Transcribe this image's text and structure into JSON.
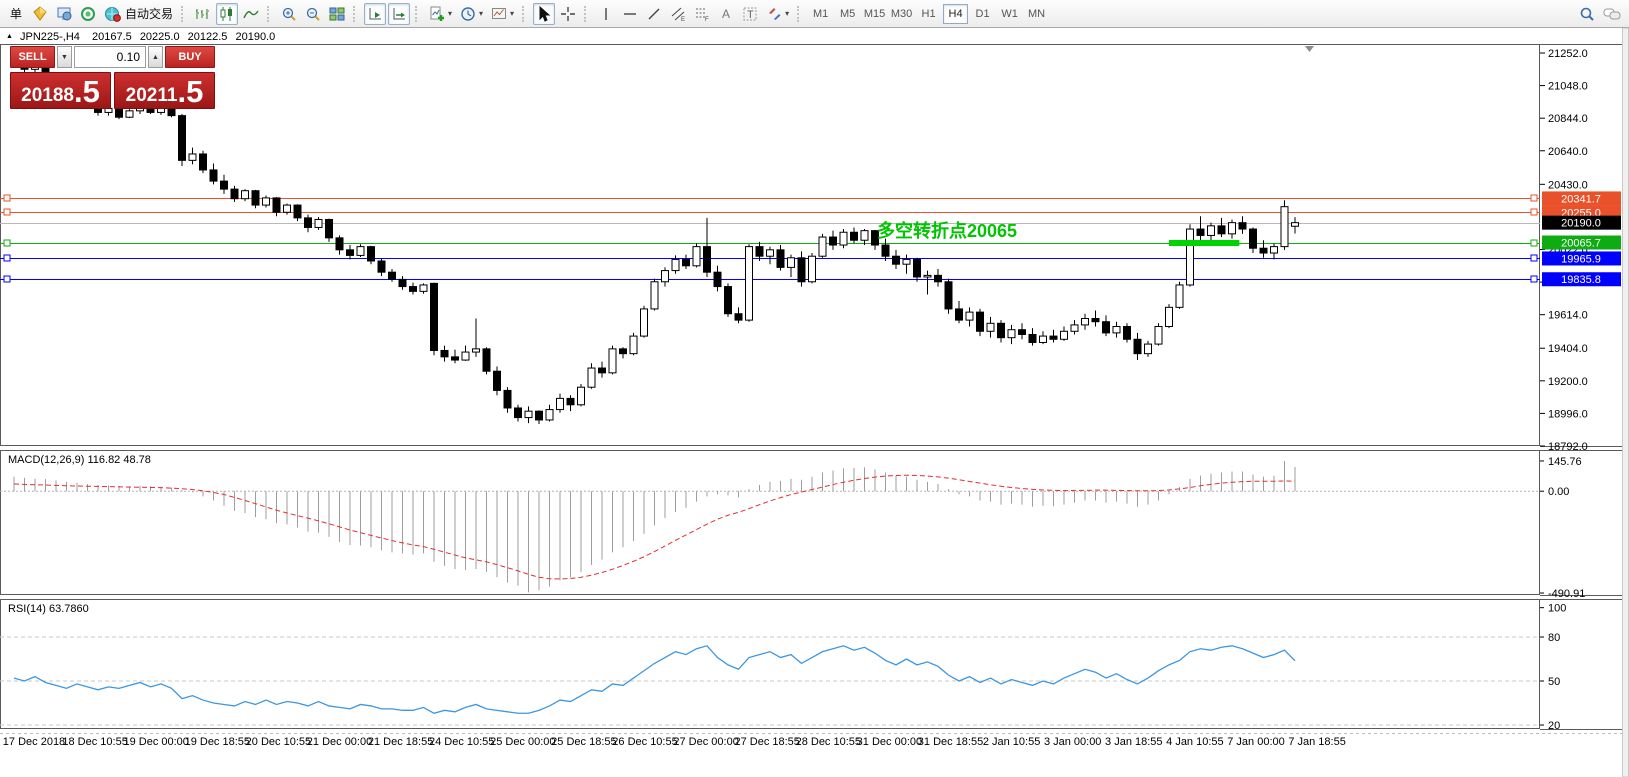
{
  "toolbar": {
    "new_order_label": "单",
    "autotrading_label": "自动交易",
    "timeframes": {
      "items": [
        "M1",
        "M5",
        "M15",
        "M30",
        "H1",
        "H4",
        "D1",
        "W1",
        "MN"
      ],
      "active": "H4"
    }
  },
  "title_bar": {
    "symbol_period": "JPN225-,H4",
    "open": "20167.5",
    "high": "20225.0",
    "low": "20122.5",
    "close": "20190.0"
  },
  "trade_panel": {
    "sell_label": "SELL",
    "buy_label": "BUY",
    "volume": "0.10",
    "sell_price_main": "20188",
    "sell_price_frac": ".5",
    "buy_price_main": "20211",
    "buy_price_frac": ".5"
  },
  "annotation": {
    "text": "多空转折点20065",
    "color": "#00c400"
  },
  "colors": {
    "bull": "#ffffff",
    "bear": "#000000",
    "wick": "#000000",
    "orange_level": "#e8512a",
    "green_level": "#0fab12",
    "blue_level": "#0000ff",
    "current_price_line": "#b8b8b8",
    "current_price_badge": "#000000",
    "macd_histogram": "#9e9e9e",
    "macd_signal": "#e03030",
    "rsi_line": "#3c96e0",
    "highlight_segment": "#00d300"
  },
  "price_axis": {
    "ticks": [
      "21252.0",
      "21048.0",
      "20844.0",
      "20640.0",
      "20430.0",
      "20022.0",
      "19818.0",
      "19614.0",
      "19404.0",
      "19200.0",
      "18996.0",
      "18792.0"
    ]
  },
  "levels": [
    {
      "label": "20341.7",
      "value": 20341.7,
      "color": "#e8512a",
      "handles": true
    },
    {
      "label": "20255.0",
      "value": 20255.0,
      "color": "#e8512a",
      "handles": true
    },
    {
      "label": "20190.0",
      "value": 20190.0,
      "color": "#b8b8b8",
      "badge_color": "#000000",
      "current": true
    },
    {
      "label": "20065.7",
      "value": 20065.7,
      "color": "#0fab12",
      "handles": true,
      "highlight_segment": {
        "from_bar": 110,
        "to_bar": 116.7
      }
    },
    {
      "label": "19965.9",
      "value": 19965.9,
      "color": "#0000ff",
      "handles": true
    },
    {
      "label": "19835.8",
      "value": 19835.8,
      "color": "#0000ff",
      "handles": true
    }
  ],
  "macd_pane": {
    "label": "MACD(12,26,9) 116.82 48.78",
    "axis_ticks": [
      {
        "label": "145.76",
        "value": 145.76
      },
      {
        "label": "0.00",
        "value": 0
      },
      {
        "label": "-490.91",
        "value": -490.91
      }
    ]
  },
  "rsi_pane": {
    "label": "RSI(14) 63.7860",
    "axis_ticks": [
      {
        "label": "100",
        "value": 100
      },
      {
        "label": "80",
        "value": 80
      },
      {
        "label": "50",
        "value": 50
      },
      {
        "label": "20",
        "value": 20
      }
    ],
    "level_lines": [
      80,
      50,
      20
    ]
  },
  "time_axis": {
    "labels": [
      "17 Dec 2018",
      "18 Dec 10:55",
      "19 Dec 00:00",
      "19 Dec 18:55",
      "20 Dec 10:55",
      "21 Dec 00:00",
      "21 Dec 18:55",
      "24 Dec 10:55",
      "25 Dec 00:00",
      "25 Dec 18:55",
      "26 Dec 10:55",
      "27 Dec 00:00",
      "27 Dec 18:55",
      "28 Dec 10:55",
      "31 Dec 00:00",
      "31 Dec 18:55",
      "2 Jan 10:55",
      "3 Jan 00:00",
      "3 Jan 18:55",
      "4 Jan 10:55",
      "7 Jan 00:00",
      "7 Jan 18:55"
    ]
  },
  "chart_data": {
    "type": "candlestick",
    "symbol": "JPN225-",
    "period": "H4",
    "ohlc_current": {
      "open": 20167.5,
      "high": 20225.0,
      "low": 20122.5,
      "close": 20190.0
    },
    "candles": [
      [
        21190,
        21245,
        21160,
        21220
      ],
      [
        21220,
        21235,
        21120,
        21150
      ],
      [
        21150,
        21200,
        21130,
        21180
      ],
      [
        21180,
        21195,
        21080,
        21100
      ],
      [
        21100,
        21130,
        21020,
        21040
      ],
      [
        21040,
        21070,
        20950,
        20970
      ],
      [
        20970,
        21020,
        20940,
        21010
      ],
      [
        21010,
        21025,
        20910,
        20930
      ],
      [
        20930,
        20960,
        20860,
        20880
      ],
      [
        20880,
        20930,
        20860,
        20905
      ],
      [
        20905,
        20915,
        20838,
        20850
      ],
      [
        20850,
        20900,
        20845,
        20890
      ],
      [
        20890,
        20940,
        20870,
        20930
      ],
      [
        20930,
        20945,
        20870,
        20880
      ],
      [
        20880,
        20930,
        20865,
        20920
      ],
      [
        20920,
        20935,
        20850,
        20860
      ],
      [
        20860,
        20870,
        20545,
        20580
      ],
      [
        20580,
        20660,
        20555,
        20620
      ],
      [
        20620,
        20640,
        20500,
        20520
      ],
      [
        20520,
        20560,
        20430,
        20450
      ],
      [
        20450,
        20490,
        20370,
        20400
      ],
      [
        20400,
        20420,
        20320,
        20340
      ],
      [
        20340,
        20400,
        20325,
        20390
      ],
      [
        20390,
        20395,
        20280,
        20300
      ],
      [
        20300,
        20360,
        20285,
        20345
      ],
      [
        20345,
        20350,
        20230,
        20255
      ],
      [
        20255,
        20310,
        20240,
        20300
      ],
      [
        20300,
        20305,
        20200,
        20220
      ],
      [
        20220,
        20240,
        20130,
        20160
      ],
      [
        20160,
        20225,
        20145,
        20210
      ],
      [
        20210,
        20215,
        20070,
        20095
      ],
      [
        20095,
        20110,
        19990,
        20020
      ],
      [
        20020,
        20050,
        19960,
        19985
      ],
      [
        19985,
        20055,
        19975,
        20040
      ],
      [
        20040,
        20045,
        19930,
        19950
      ],
      [
        19950,
        19965,
        19855,
        19880
      ],
      [
        19880,
        19900,
        19820,
        19835
      ],
      [
        19835,
        19855,
        19770,
        19790
      ],
      [
        19790,
        19815,
        19740,
        19760
      ],
      [
        19760,
        19810,
        19745,
        19800
      ],
      [
        19810,
        19815,
        19360,
        19390
      ],
      [
        19390,
        19420,
        19320,
        19350
      ],
      [
        19350,
        19395,
        19310,
        19330
      ],
      [
        19330,
        19420,
        19325,
        19380
      ],
      [
        19380,
        19590,
        19350,
        19400
      ],
      [
        19400,
        19410,
        19240,
        19260
      ],
      [
        19260,
        19290,
        19110,
        19140
      ],
      [
        19140,
        19160,
        19000,
        19030
      ],
      [
        19030,
        19050,
        18945,
        18970
      ],
      [
        18970,
        19040,
        18935,
        19010
      ],
      [
        19010,
        19015,
        18930,
        18955
      ],
      [
        18955,
        19050,
        18945,
        19020
      ],
      [
        19020,
        19120,
        19000,
        19090
      ],
      [
        19090,
        19110,
        19010,
        19050
      ],
      [
        19050,
        19180,
        19040,
        19160
      ],
      [
        19160,
        19310,
        19150,
        19280
      ],
      [
        19280,
        19320,
        19220,
        19250
      ],
      [
        19250,
        19420,
        19240,
        19400
      ],
      [
        19400,
        19410,
        19340,
        19370
      ],
      [
        19370,
        19500,
        19360,
        19480
      ],
      [
        19480,
        19670,
        19470,
        19650
      ],
      [
        19650,
        19840,
        19640,
        19820
      ],
      [
        19820,
        19910,
        19790,
        19890
      ],
      [
        19890,
        19985,
        19870,
        19960
      ],
      [
        19960,
        19990,
        19900,
        19920
      ],
      [
        19920,
        20060,
        19910,
        20040
      ],
      [
        20040,
        20220,
        19850,
        19880
      ],
      [
        19880,
        19920,
        19760,
        19790
      ],
      [
        19790,
        19810,
        19600,
        19620
      ],
      [
        19620,
        19660,
        19560,
        19580
      ],
      [
        19580,
        20055,
        19570,
        20040
      ],
      [
        20040,
        20070,
        19950,
        19980
      ],
      [
        19980,
        20040,
        19930,
        20020
      ],
      [
        20020,
        20050,
        19890,
        19910
      ],
      [
        19910,
        19990,
        19850,
        19970
      ],
      [
        19970,
        20010,
        19790,
        19820
      ],
      [
        19820,
        20000,
        19810,
        19980
      ],
      [
        19980,
        20120,
        19970,
        20100
      ],
      [
        20100,
        20140,
        20020,
        20050
      ],
      [
        20050,
        20150,
        20030,
        20130
      ],
      [
        20130,
        20160,
        20060,
        20080
      ],
      [
        20080,
        20150,
        20050,
        20140
      ],
      [
        20140,
        20145,
        20020,
        20050
      ],
      [
        20050,
        20090,
        19950,
        19980
      ],
      [
        19980,
        20020,
        19900,
        19930
      ],
      [
        19930,
        19990,
        19870,
        19960
      ],
      [
        19960,
        19970,
        19820,
        19850
      ],
      [
        19850,
        19890,
        19740,
        19860
      ],
      [
        19860,
        19900,
        19790,
        19820
      ],
      [
        19820,
        19840,
        19620,
        19650
      ],
      [
        19650,
        19700,
        19560,
        19580
      ],
      [
        19580,
        19660,
        19540,
        19630
      ],
      [
        19630,
        19650,
        19480,
        19510
      ],
      [
        19510,
        19600,
        19470,
        19560
      ],
      [
        19560,
        19580,
        19440,
        19470
      ],
      [
        19470,
        19550,
        19430,
        19520
      ],
      [
        19520,
        19560,
        19460,
        19490
      ],
      [
        19490,
        19530,
        19420,
        19440
      ],
      [
        19440,
        19510,
        19430,
        19480
      ],
      [
        19480,
        19520,
        19440,
        19460
      ],
      [
        19460,
        19540,
        19450,
        19510
      ],
      [
        19510,
        19580,
        19490,
        19550
      ],
      [
        19550,
        19620,
        19520,
        19590
      ],
      [
        19590,
        19640,
        19540,
        19570
      ],
      [
        19570,
        19610,
        19480,
        19500
      ],
      [
        19500,
        19570,
        19470,
        19540
      ],
      [
        19540,
        19560,
        19440,
        19460
      ],
      [
        19460,
        19500,
        19330,
        19370
      ],
      [
        19370,
        19450,
        19350,
        19430
      ],
      [
        19430,
        19560,
        19420,
        19540
      ],
      [
        19540,
        19680,
        19530,
        19660
      ],
      [
        19660,
        19820,
        19650,
        19800
      ],
      [
        19800,
        20180,
        19790,
        20150
      ],
      [
        20150,
        20230,
        20080,
        20110
      ],
      [
        20110,
        20190,
        20060,
        20170
      ],
      [
        20170,
        20220,
        20100,
        20120
      ],
      [
        20120,
        20210,
        20090,
        20190
      ],
      [
        20190,
        20230,
        20120,
        20150
      ],
      [
        20150,
        20160,
        20000,
        20030
      ],
      [
        20030,
        20080,
        19970,
        20000
      ],
      [
        20000,
        20060,
        19960,
        20040
      ],
      [
        20040,
        20330,
        20020,
        20290
      ],
      [
        20167.5,
        20225.0,
        20122.5,
        20190.0
      ]
    ],
    "macd": {
      "histogram": [
        70,
        65,
        60,
        58,
        52,
        45,
        40,
        35,
        30,
        28,
        25,
        24,
        26,
        24,
        22,
        18,
        5,
        -5,
        -25,
        -45,
        -70,
        -95,
        -105,
        -125,
        -135,
        -155,
        -160,
        -175,
        -195,
        -200,
        -220,
        -245,
        -260,
        -262,
        -270,
        -285,
        -295,
        -300,
        -305,
        -300,
        -340,
        -360,
        -375,
        -380,
        -375,
        -390,
        -415,
        -440,
        -455,
        -488,
        -478,
        -460,
        -430,
        -415,
        -390,
        -355,
        -330,
        -295,
        -270,
        -240,
        -205,
        -165,
        -130,
        -100,
        -80,
        -50,
        -25,
        -15,
        -20,
        -30,
        10,
        30,
        45,
        50,
        60,
        55,
        70,
        90,
        100,
        110,
        112,
        115,
        105,
        90,
        75,
        70,
        55,
        45,
        35,
        10,
        -15,
        -25,
        -45,
        -50,
        -65,
        -60,
        -65,
        -75,
        -70,
        -72,
        -65,
        -55,
        -45,
        -45,
        -55,
        -50,
        -60,
        -75,
        -65,
        -45,
        -15,
        20,
        60,
        75,
        85,
        90,
        95,
        95,
        80,
        70,
        75,
        145.76,
        116.82
      ],
      "signal": [
        35,
        33,
        31,
        30,
        28,
        26,
        25,
        24,
        23,
        22,
        21,
        20,
        19,
        18,
        17,
        15,
        12,
        8,
        2,
        -6,
        -16,
        -30,
        -45,
        -60,
        -76,
        -92,
        -105,
        -118,
        -130,
        -143,
        -157,
        -172,
        -187,
        -200,
        -213,
        -226,
        -238,
        -249,
        -259,
        -267,
        -280,
        -294,
        -308,
        -321,
        -331,
        -341,
        -354,
        -369,
        -384,
        -401,
        -415,
        -422,
        -423,
        -421,
        -415,
        -405,
        -392,
        -376,
        -358,
        -338,
        -316,
        -291,
        -264,
        -237,
        -211,
        -185,
        -159,
        -135,
        -116,
        -102,
        -84,
        -65,
        -47,
        -31,
        -16,
        -4,
        8,
        20,
        32,
        43,
        53,
        61,
        68,
        73,
        76,
        77,
        76,
        73,
        69,
        63,
        55,
        47,
        39,
        31,
        24,
        18,
        13,
        9,
        6,
        4,
        3,
        4,
        4,
        5,
        5,
        4,
        3,
        2,
        2,
        3,
        6,
        11,
        18,
        26,
        33,
        39,
        43,
        46,
        48,
        48,
        48,
        49,
        48.78
      ]
    },
    "rsi": [
      52,
      50,
      53,
      49,
      47,
      45,
      48,
      46,
      44,
      46,
      45,
      47,
      49,
      46,
      48,
      45,
      38,
      40,
      37,
      35,
      34,
      33,
      36,
      34,
      37,
      34,
      36,
      35,
      33,
      36,
      33,
      32,
      31,
      34,
      33,
      31,
      31,
      30,
      30,
      32,
      28,
      30,
      29,
      32,
      34,
      31,
      30,
      29,
      28,
      28,
      30,
      33,
      37,
      36,
      40,
      44,
      43,
      48,
      47,
      52,
      57,
      62,
      66,
      70,
      68,
      72,
      74,
      66,
      61,
      58,
      66,
      68,
      70,
      66,
      68,
      62,
      66,
      70,
      72,
      74,
      71,
      73,
      69,
      64,
      61,
      65,
      61,
      63,
      60,
      54,
      50,
      53,
      49,
      52,
      48,
      51,
      49,
      47,
      50,
      48,
      52,
      55,
      58,
      56,
      52,
      55,
      51,
      48,
      52,
      57,
      61,
      64,
      70,
      72,
      71,
      73,
      74,
      72,
      69,
      66,
      68,
      71,
      63.79
    ]
  }
}
